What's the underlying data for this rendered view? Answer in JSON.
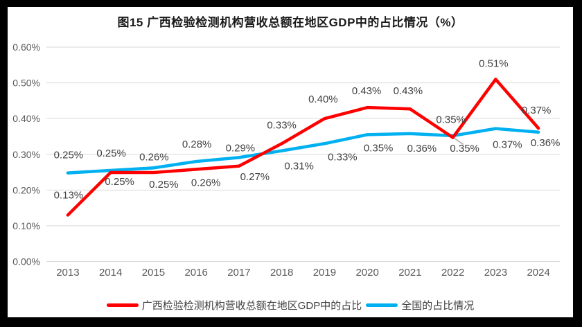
{
  "title": "图15 广西检验检测机构营收总额在地区GDP中的占比情况（%）",
  "chart_data": {
    "type": "line",
    "title": "图15 广西检验检测机构营收总额在地区GDP中的占比情况（%）",
    "categories": [
      "2013",
      "2014",
      "2015",
      "2016",
      "2017",
      "2018",
      "2019",
      "2020",
      "2021",
      "2022",
      "2023",
      "2024"
    ],
    "series": [
      {
        "name": "广西检验检测机构营收总额在地区GDP中的占比",
        "color": "#FF0000",
        "values": [
          0.13,
          0.25,
          0.25,
          0.26,
          0.27,
          0.33,
          0.4,
          0.43,
          0.43,
          0.35,
          0.51,
          0.37
        ],
        "labels": [
          "0.13%",
          "0.25%",
          "0.25%",
          "0.26%",
          "0.27%",
          "0.33%",
          "0.40%",
          "0.43%",
          "0.43%",
          "0.35%",
          "0.51%",
          "0.37%"
        ],
        "plot_values": [
          0.13,
          0.249,
          0.249,
          0.258,
          0.267,
          0.33,
          0.4,
          0.431,
          0.427,
          0.347,
          0.51,
          0.373
        ]
      },
      {
        "name": "全国的占比情况",
        "color": "#00B0F0",
        "values": [
          0.25,
          0.25,
          0.26,
          0.28,
          0.29,
          0.31,
          0.33,
          0.35,
          0.36,
          0.35,
          0.37,
          0.36
        ],
        "labels": [
          "0.25%",
          "0.25%",
          "0.26%",
          "0.28%",
          "0.29%",
          "0.31%",
          "0.33%",
          "0.35%",
          "0.36%",
          "0.35%",
          "0.37%",
          "0.36%"
        ],
        "plot_values": [
          0.248,
          0.255,
          0.262,
          0.28,
          0.291,
          0.31,
          0.33,
          0.355,
          0.358,
          0.352,
          0.372,
          0.362
        ]
      }
    ],
    "yticks": [
      "0.00%",
      "0.10%",
      "0.20%",
      "0.30%",
      "0.40%",
      "0.50%",
      "0.60%"
    ],
    "ylim": [
      0,
      0.6
    ],
    "grid": true,
    "legend_position": "bottom",
    "callout": {
      "series": "全国的占比情况",
      "category": "2022",
      "label": "0.35%",
      "has_leader_line": true
    }
  },
  "colors": {
    "frame": "#000000",
    "background": "#FFFFFF",
    "gridline": "#D9D9D9",
    "axis_text": "#595959",
    "data_label_text": "#404040",
    "leader_line": "#A6A6A6"
  }
}
